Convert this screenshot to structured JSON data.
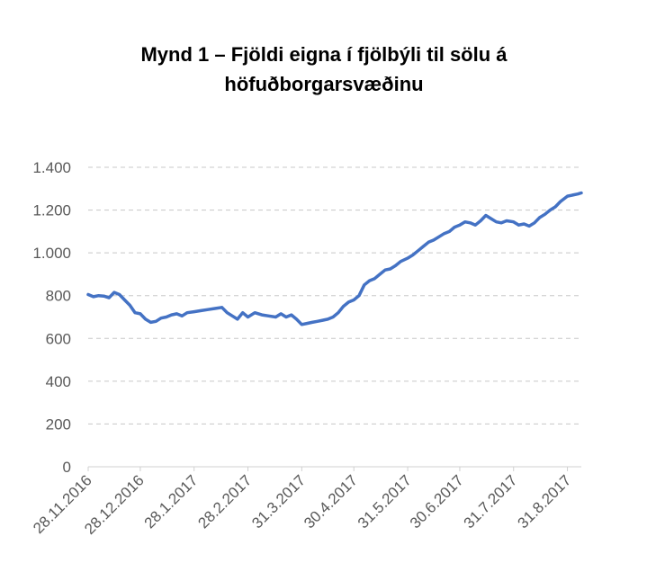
{
  "chart_data": {
    "type": "line",
    "title_line1": "Mynd 1 – Fjöldi eigna í fjölbýli til sölu á",
    "title_line2": "höfuðborgarsvæðinu",
    "xlabel": "",
    "ylabel": "",
    "ylim": [
      0,
      1400
    ],
    "yticks": [
      0,
      200,
      400,
      600,
      800,
      1000,
      1200,
      1400
    ],
    "ytick_labels": [
      "0",
      "200",
      "400",
      "600",
      "800",
      "1.000",
      "1.200",
      "1.400"
    ],
    "xtick_labels": [
      "28.11.2016",
      "28.12.2016",
      "28.1.2017",
      "28.2.2017",
      "31.3.2017",
      "30.4.2017",
      "31.5.2017",
      "30.6.2017",
      "31.7.2017",
      "31.8.2017"
    ],
    "xtick_dates": [
      "2016-11-28",
      "2016-12-28",
      "2017-01-28",
      "2017-02-28",
      "2017-03-31",
      "2017-04-30",
      "2017-05-31",
      "2017-06-30",
      "2017-07-31",
      "2017-08-31"
    ],
    "xlim": [
      "2016-11-28",
      "2017-09-08"
    ],
    "grid": true,
    "legend": "none",
    "line_color": "#4472C4",
    "series": [
      {
        "x": [
          "2016-11-28",
          "2016-12-01",
          "2016-12-04",
          "2016-12-07",
          "2016-12-10",
          "2016-12-13",
          "2016-12-16",
          "2016-12-19",
          "2016-12-22",
          "2016-12-25",
          "2016-12-28",
          "2016-12-31",
          "2017-01-03",
          "2017-01-06",
          "2017-01-09",
          "2017-01-12",
          "2017-01-15",
          "2017-01-18",
          "2017-01-21",
          "2017-01-24",
          "2017-01-28",
          "2017-02-01",
          "2017-02-05",
          "2017-02-09",
          "2017-02-13",
          "2017-02-16",
          "2017-02-19",
          "2017-02-22",
          "2017-02-25",
          "2017-02-28",
          "2017-03-04",
          "2017-03-08",
          "2017-03-12",
          "2017-03-16",
          "2017-03-19",
          "2017-03-22",
          "2017-03-25",
          "2017-03-28",
          "2017-03-31",
          "2017-04-03",
          "2017-04-06",
          "2017-04-09",
          "2017-04-12",
          "2017-04-15",
          "2017-04-18",
          "2017-04-21",
          "2017-04-24",
          "2017-04-27",
          "2017-04-30",
          "2017-05-03",
          "2017-05-06",
          "2017-05-09",
          "2017-05-12",
          "2017-05-15",
          "2017-05-18",
          "2017-05-21",
          "2017-05-24",
          "2017-05-27",
          "2017-05-31",
          "2017-06-03",
          "2017-06-06",
          "2017-06-09",
          "2017-06-12",
          "2017-06-15",
          "2017-06-18",
          "2017-06-21",
          "2017-06-24",
          "2017-06-27",
          "2017-06-30",
          "2017-07-03",
          "2017-07-06",
          "2017-07-09",
          "2017-07-12",
          "2017-07-15",
          "2017-07-18",
          "2017-07-21",
          "2017-07-24",
          "2017-07-27",
          "2017-07-31",
          "2017-08-03",
          "2017-08-06",
          "2017-08-09",
          "2017-08-12",
          "2017-08-15",
          "2017-08-18",
          "2017-08-21",
          "2017-08-24",
          "2017-08-27",
          "2017-08-31",
          "2017-09-03",
          "2017-09-06",
          "2017-09-08"
        ],
        "y": [
          805,
          795,
          800,
          798,
          790,
          815,
          805,
          780,
          755,
          720,
          715,
          690,
          675,
          680,
          695,
          700,
          710,
          715,
          705,
          720,
          725,
          730,
          735,
          740,
          745,
          720,
          705,
          690,
          720,
          700,
          720,
          710,
          705,
          700,
          715,
          700,
          710,
          690,
          665,
          670,
          675,
          680,
          685,
          690,
          700,
          720,
          750,
          770,
          780,
          800,
          850,
          870,
          880,
          900,
          920,
          925,
          940,
          960,
          975,
          990,
          1010,
          1030,
          1050,
          1060,
          1075,
          1090,
          1100,
          1120,
          1130,
          1145,
          1140,
          1130,
          1150,
          1175,
          1160,
          1145,
          1140,
          1150,
          1145,
          1130,
          1135,
          1125,
          1140,
          1165,
          1180,
          1200,
          1215,
          1240,
          1265,
          1270,
          1275,
          1280
        ]
      }
    ]
  }
}
